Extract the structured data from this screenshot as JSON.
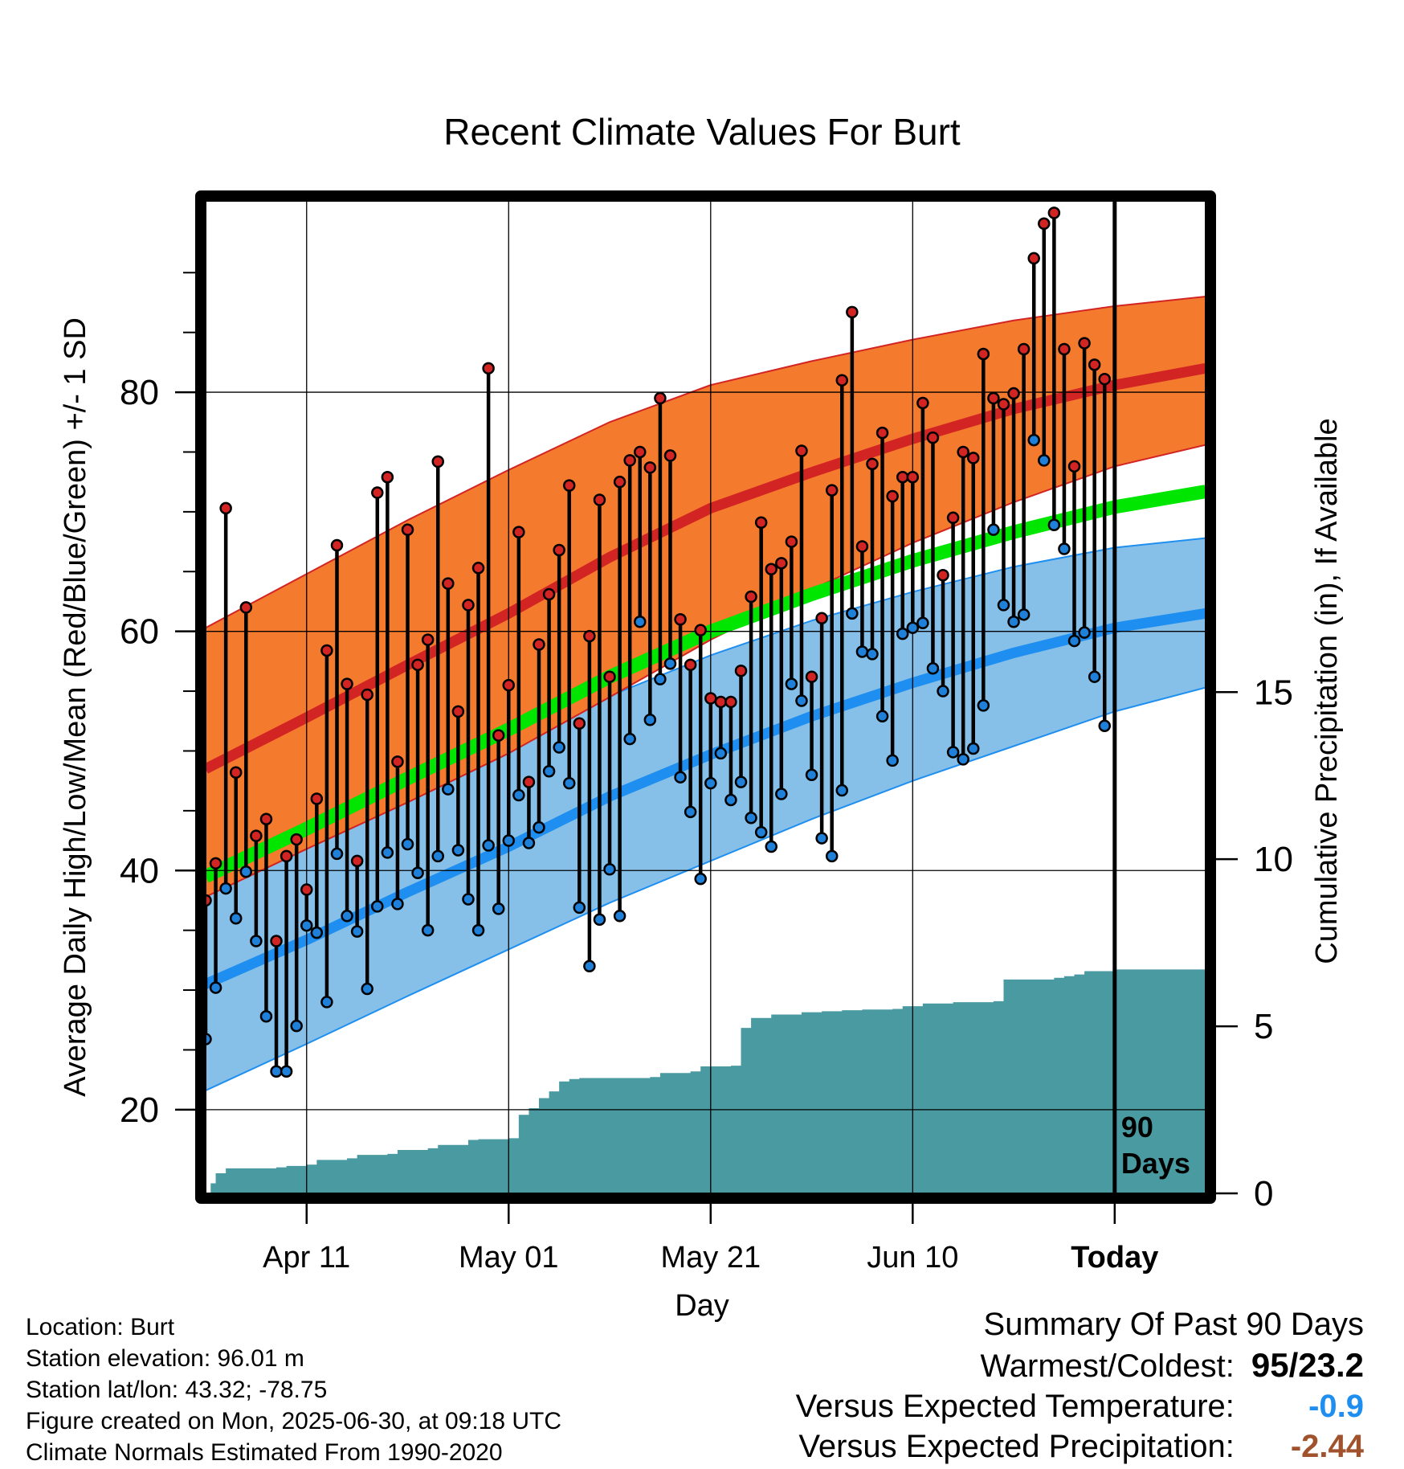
{
  "chart_data": {
    "type": "line",
    "title": "Recent Climate Values For Burt",
    "xlabel": "Day",
    "ylabel_left": "Average Daily High/Low/Mean (Red/Blue/Green) +/- 1 SD",
    "ylabel_right": "Cumulative Precipitation (in), If Available",
    "ylim_left": [
      13,
      96
    ],
    "ylim_right": [
      0,
      29.7
    ],
    "yticks_left": [
      "20",
      "40",
      "60",
      "80"
    ],
    "yticks_right": [
      "0",
      "5",
      "10",
      "15"
    ],
    "xticks": [
      "Apr 11",
      "May 01",
      "May 21",
      "Jun 10",
      "Today"
    ],
    "xtick_days": [
      10,
      30,
      50,
      70,
      90
    ],
    "xlim": [
      0,
      99
    ],
    "today_day": 90,
    "today_label": [
      "90",
      "Days"
    ],
    "normal_bands": {
      "x": [
        0,
        10,
        20,
        30,
        40,
        50,
        60,
        70,
        80,
        90,
        99
      ],
      "high_mean": [
        48.5,
        52.8,
        57.2,
        61.5,
        66.2,
        70.3,
        73.3,
        76.1,
        78.6,
        80.6,
        82.0
      ],
      "high_upper": [
        60.3,
        64.8,
        69.3,
        73.5,
        77.5,
        80.6,
        82.6,
        84.4,
        86.0,
        87.2,
        88.0
      ],
      "high_lower": [
        37.8,
        41.8,
        45.7,
        49.8,
        54.5,
        59.3,
        63.5,
        67.4,
        70.8,
        73.8,
        75.6
      ],
      "avg_mean": [
        39.5,
        43.5,
        47.7,
        51.8,
        56.2,
        60.0,
        63.1,
        65.9,
        68.3,
        70.4,
        71.7
      ],
      "low_mean": [
        30.5,
        34.2,
        38.2,
        42.0,
        46.2,
        49.7,
        52.9,
        55.7,
        58.2,
        60.3,
        61.5
      ],
      "low_upper": [
        39.3,
        43.0,
        46.8,
        50.6,
        54.6,
        58.0,
        60.9,
        63.3,
        65.4,
        67.0,
        67.8
      ],
      "low_lower": [
        21.6,
        25.5,
        29.5,
        33.4,
        37.3,
        40.8,
        44.3,
        47.5,
        50.4,
        53.3,
        55.3
      ]
    },
    "series": [
      {
        "name": "High",
        "values": [
          37.5,
          40.6,
          70.3,
          48.2,
          62.0,
          42.9,
          44.3,
          34.1,
          41.2,
          42.6,
          38.4,
          46.0,
          58.4,
          67.2,
          55.6,
          40.8,
          54.7,
          71.6,
          72.9,
          49.1,
          68.5,
          57.2,
          59.3,
          74.2,
          64.0,
          53.3,
          62.2,
          65.3,
          82.0,
          51.3,
          55.5,
          68.3,
          47.4,
          58.9,
          63.1,
          66.8,
          72.2,
          52.3,
          59.6,
          71.0,
          56.2,
          72.5,
          74.3,
          75.0,
          73.7,
          79.5,
          74.7,
          61.0,
          57.2,
          60.1,
          54.4,
          54.1,
          54.1,
          56.7,
          62.9,
          69.1,
          65.2,
          65.7,
          67.5,
          75.1,
          56.2,
          61.1,
          71.8,
          81.0,
          86.7,
          67.1,
          74.0,
          76.6,
          71.3,
          72.9,
          72.9,
          79.1,
          76.2,
          64.7,
          69.5,
          75.0,
          74.5,
          83.2,
          79.5,
          79.0,
          79.9,
          83.6,
          91.2,
          94.1,
          95.0,
          83.6,
          73.8,
          84.1,
          82.3,
          81.1
        ]
      },
      {
        "name": "Low",
        "values": [
          25.9,
          30.2,
          38.5,
          36.0,
          39.9,
          34.1,
          27.8,
          23.2,
          23.2,
          27.0,
          35.4,
          34.8,
          29.0,
          41.4,
          36.2,
          34.9,
          30.1,
          37.0,
          41.5,
          37.2,
          42.2,
          39.8,
          35.0,
          41.2,
          46.8,
          41.7,
          37.6,
          35.0,
          42.1,
          36.8,
          42.5,
          46.3,
          42.3,
          43.6,
          48.3,
          50.3,
          47.3,
          36.9,
          32.0,
          35.9,
          40.1,
          36.2,
          51.0,
          60.8,
          52.6,
          56.0,
          57.3,
          47.8,
          44.9,
          39.3,
          47.3,
          49.8,
          45.9,
          47.4,
          44.4,
          43.2,
          42.0,
          46.4,
          55.6,
          54.2,
          48.0,
          42.7,
          41.2,
          46.7,
          61.5,
          58.3,
          58.1,
          52.9,
          49.2,
          59.8,
          60.3,
          60.7,
          56.9,
          55.0,
          49.9,
          49.3,
          50.2,
          53.8,
          68.5,
          62.2,
          60.8,
          61.4,
          76.0,
          74.3,
          68.9,
          66.9,
          59.2,
          59.9,
          56.2,
          52.1
        ]
      }
    ],
    "precipitation": {
      "x": [
        0,
        0.5,
        1,
        2,
        7,
        8,
        10,
        11,
        14,
        15,
        18,
        19,
        22,
        23,
        26,
        27,
        30,
        31,
        32,
        33,
        34,
        35,
        36,
        37,
        44,
        45,
        48,
        49,
        52,
        53,
        54,
        56,
        59,
        61,
        63,
        65,
        68,
        69,
        71,
        74,
        78,
        79,
        84,
        85,
        86,
        87,
        90,
        99
      ],
      "values": [
        0,
        0.3,
        0.6,
        0.75,
        0.78,
        0.82,
        0.86,
        1.0,
        1.05,
        1.15,
        1.18,
        1.3,
        1.35,
        1.45,
        1.6,
        1.62,
        1.65,
        2.35,
        2.55,
        2.85,
        3.05,
        3.35,
        3.42,
        3.45,
        3.48,
        3.6,
        3.65,
        3.8,
        3.82,
        4.95,
        5.25,
        5.35,
        5.42,
        5.45,
        5.48,
        5.5,
        5.52,
        5.6,
        5.68,
        5.72,
        5.75,
        6.4,
        6.45,
        6.5,
        6.55,
        6.65,
        6.7,
        6.72
      ]
    }
  },
  "footer": {
    "location": "Location: Burt",
    "elevation": "Station elevation: 96.01 m",
    "latlon": "Station lat/lon: 43.32; -78.75",
    "created": "Figure created on Mon, 2025-06-30, at 09:18 UTC",
    "normals": "Climate Normals Estimated From 1990-2020"
  },
  "summary": {
    "heading": "Summary Of Past 90 Days",
    "warm_cold_label": "Warmest/Coldest:",
    "warm_cold_value": "95/23.2",
    "temp_label": "Versus Expected Temperature:",
    "temp_value": "-0.9",
    "precip_label": "Versus Expected Precipitation:",
    "precip_value": "-2.44"
  },
  "colors": {
    "high_band": "#f47a2e",
    "high_line": "#d32424",
    "avg_line": "#00e600",
    "low_band": "#86c0e8",
    "low_line": "#1e8ff0",
    "precip_fill": "#4a9aa2",
    "high_dot": "#d32424",
    "low_dot": "#1e80d8",
    "temp_value": "#1e8ff0",
    "precip_value": "#a0522d"
  }
}
